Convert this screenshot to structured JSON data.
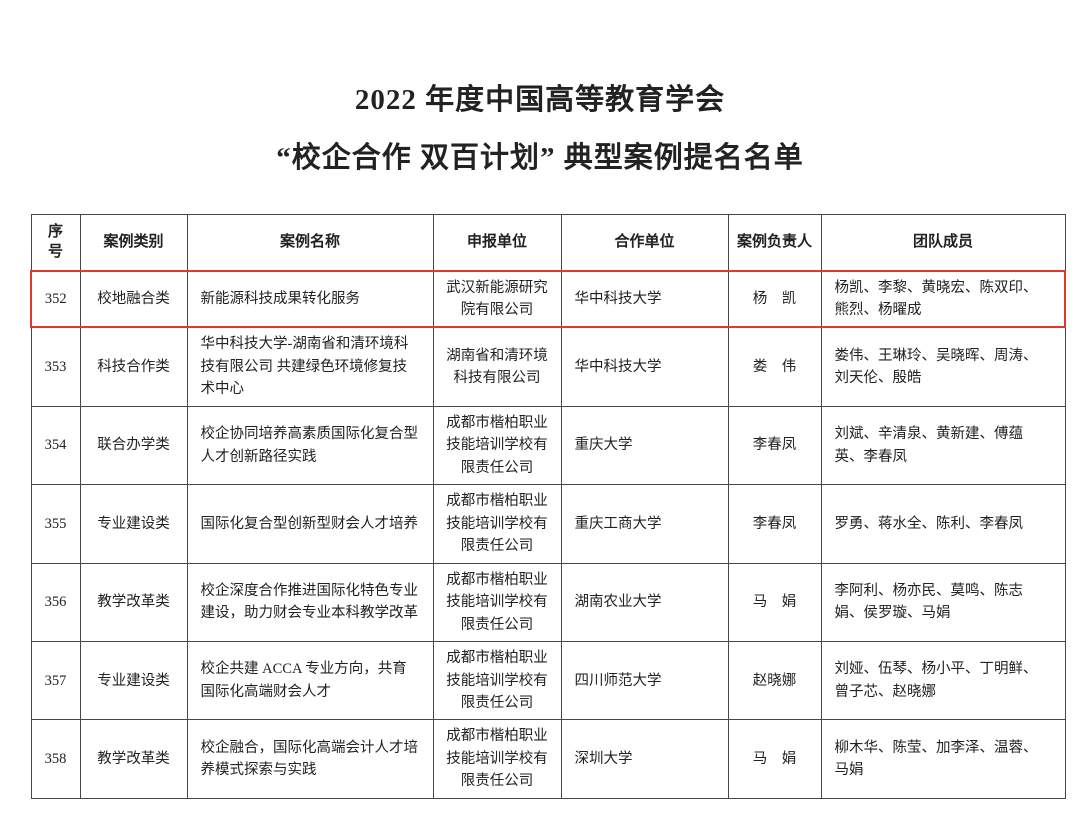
{
  "page": {
    "title_line1": "2022 年度中国高等教育学会",
    "title_line2": "“校企合作 双百计划” 典型案例提名名单"
  },
  "colors": {
    "highlight_border": "#e0392c",
    "grid_line": "#474747",
    "text": "#222222"
  },
  "table": {
    "headers": {
      "no": "序号",
      "category": "案例类别",
      "name": "案例名称",
      "applicant": "申报单位",
      "partner": "合作单位",
      "leader": "案例负责人",
      "team": "团队成员"
    },
    "rows": [
      {
        "no": "352",
        "category": "校地融合类",
        "name": "新能源科技成果转化服务",
        "applicant": "武汉新能源研究院有限公司",
        "partner": "华中科技大学",
        "leader": "杨　凯",
        "team": "杨凯、李黎、黄晓宏、陈双印、熊烈、杨曜成",
        "highlighted": true
      },
      {
        "no": "353",
        "category": "科技合作类",
        "name": "华中科技大学-湖南省和清环境科技有限公司 共建绿色环境修复技术中心",
        "applicant": "湖南省和清环境科技有限公司",
        "partner": "华中科技大学",
        "leader": "娄　伟",
        "team": "娄伟、王琳玲、吴晓晖、周涛、刘天伦、殷皓",
        "highlighted": false
      },
      {
        "no": "354",
        "category": "联合办学类",
        "name": "校企协同培养高素质国际化复合型人才创新路径实践",
        "applicant": "成都市楷柏职业技能培训学校有限责任公司",
        "partner": "重庆大学",
        "leader": "李春凤",
        "team": "刘斌、辛清泉、黄新建、傅蕴英、李春凤",
        "highlighted": false
      },
      {
        "no": "355",
        "category": "专业建设类",
        "name": "国际化复合型创新型财会人才培养",
        "applicant": "成都市楷柏职业技能培训学校有限责任公司",
        "partner": "重庆工商大学",
        "leader": "李春凤",
        "team": "罗勇、蒋水全、陈利、李春凤",
        "highlighted": false
      },
      {
        "no": "356",
        "category": "教学改革类",
        "name": "校企深度合作推进国际化特色专业建设，助力财会专业本科教学改革",
        "applicant": "成都市楷柏职业技能培训学校有限责任公司",
        "partner": "湖南农业大学",
        "leader": "马　娟",
        "team": "李阿利、杨亦民、莫鸣、陈志娟、侯罗璇、马娟",
        "highlighted": false
      },
      {
        "no": "357",
        "category": "专业建设类",
        "name": "校企共建 ACCA 专业方向，共育国际化高端财会人才",
        "applicant": "成都市楷柏职业技能培训学校有限责任公司",
        "partner": "四川师范大学",
        "leader": "赵晓娜",
        "team": "刘娅、伍琴、杨小平、丁明鲜、曾子芯、赵晓娜",
        "highlighted": false
      },
      {
        "no": "358",
        "category": "教学改革类",
        "name": "校企融合，国际化高端会计人才培养模式探索与实践",
        "applicant": "成都市楷柏职业技能培训学校有限责任公司",
        "partner": "深圳大学",
        "leader": "马　娟",
        "team": "柳木华、陈莹、加李泽、温蓉、马娟",
        "highlighted": false
      }
    ]
  }
}
